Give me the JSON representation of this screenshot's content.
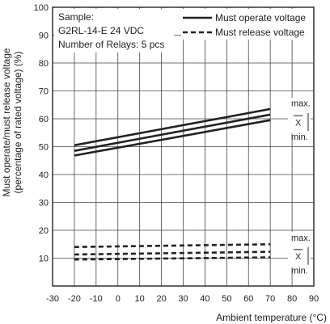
{
  "chart_data": {
    "type": "line",
    "title": "",
    "xlabel": "Ambient temperature (°C)",
    "ylabel_line1": "Must operate/must release voltage",
    "ylabel_line2": "(percentage of rated voltage) (%)",
    "xlim": [
      -30,
      90
    ],
    "ylim": [
      0,
      100
    ],
    "x_ticks": [
      -30,
      -20,
      -10,
      0,
      10,
      20,
      30,
      40,
      50,
      60,
      70,
      80,
      90
    ],
    "y_ticks": [
      10,
      20,
      30,
      40,
      50,
      60,
      70,
      80,
      90,
      100
    ],
    "grid": true,
    "annotations": {
      "sample_line1": "Sample:",
      "sample_line2": "G2RL-14-E 24 VDC",
      "sample_line3": "Number of Relays: 5 pcs"
    },
    "legend": {
      "position": "top-right",
      "entries": [
        {
          "label": "Must operate voltage",
          "style": "solid"
        },
        {
          "label": "Must release voltage",
          "style": "dashed"
        }
      ]
    },
    "right_labels": {
      "operate": {
        "max": "max.",
        "mean": "X",
        "min": "min."
      },
      "release": {
        "max": "max.",
        "mean": "X",
        "min": "min."
      }
    },
    "series": [
      {
        "group": "operate",
        "stat": "max.",
        "style": "solid",
        "x": [
          -20,
          70
        ],
        "y": [
          50.5,
          63.5
        ]
      },
      {
        "group": "operate",
        "stat": "X",
        "style": "solid",
        "x": [
          -20,
          70
        ],
        "y": [
          48.5,
          61.5
        ]
      },
      {
        "group": "operate",
        "stat": "min.",
        "style": "solid",
        "x": [
          -20,
          70
        ],
        "y": [
          46.8,
          59.5
        ]
      },
      {
        "group": "release",
        "stat": "max.",
        "style": "dashed",
        "x": [
          -20,
          70
        ],
        "y": [
          14.0,
          15.0
        ]
      },
      {
        "group": "release",
        "stat": "X",
        "style": "dashed",
        "x": [
          -20,
          70
        ],
        "y": [
          11.3,
          12.3
        ]
      },
      {
        "group": "release",
        "stat": "min.",
        "style": "dashed",
        "x": [
          -20,
          70
        ],
        "y": [
          9.5,
          10.3
        ]
      }
    ]
  }
}
